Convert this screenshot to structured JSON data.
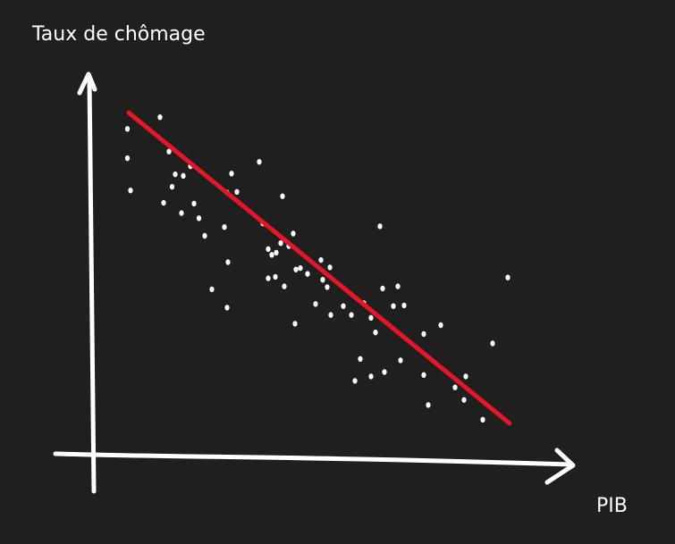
{
  "chart_data": {
    "type": "scatter",
    "title": "",
    "xlabel": "PIB",
    "ylabel": "Taux de chômage",
    "xlim": [
      0,
      100
    ],
    "ylim": [
      0,
      100
    ],
    "grid": false,
    "hand_drawn": true,
    "points": [
      {
        "x": 7.5,
        "y": 89.2
      },
      {
        "x": 7.5,
        "y": 81.2
      },
      {
        "x": 8.2,
        "y": 72.4
      },
      {
        "x": 14.8,
        "y": 92.4
      },
      {
        "x": 16.8,
        "y": 83.0
      },
      {
        "x": 18.2,
        "y": 76.8
      },
      {
        "x": 15.6,
        "y": 69.0
      },
      {
        "x": 19.6,
        "y": 66.2
      },
      {
        "x": 23.5,
        "y": 64.8
      },
      {
        "x": 17.5,
        "y": 73.4
      },
      {
        "x": 20.0,
        "y": 76.4
      },
      {
        "x": 21.6,
        "y": 79.0
      },
      {
        "x": 22.4,
        "y": 68.8
      },
      {
        "x": 24.8,
        "y": 60.0
      },
      {
        "x": 29.8,
        "y": 71.8
      },
      {
        "x": 30.8,
        "y": 77.0
      },
      {
        "x": 32.0,
        "y": 72.0
      },
      {
        "x": 37.0,
        "y": 80.2
      },
      {
        "x": 42.2,
        "y": 70.8
      },
      {
        "x": 29.2,
        "y": 62.4
      },
      {
        "x": 30.0,
        "y": 52.8
      },
      {
        "x": 37.8,
        "y": 63.4
      },
      {
        "x": 39.0,
        "y": 56.4
      },
      {
        "x": 39.8,
        "y": 54.8
      },
      {
        "x": 40.8,
        "y": 55.4
      },
      {
        "x": 41.8,
        "y": 58.0
      },
      {
        "x": 43.6,
        "y": 57.2
      },
      {
        "x": 44.6,
        "y": 60.6
      },
      {
        "x": 46.2,
        "y": 51.2
      },
      {
        "x": 39.0,
        "y": 48.4
      },
      {
        "x": 40.6,
        "y": 48.8
      },
      {
        "x": 42.6,
        "y": 46.2
      },
      {
        "x": 45.2,
        "y": 50.8
      },
      {
        "x": 47.8,
        "y": 49.6
      },
      {
        "x": 51.2,
        "y": 48.0
      },
      {
        "x": 52.2,
        "y": 46.0
      },
      {
        "x": 52.8,
        "y": 51.4
      },
      {
        "x": 50.8,
        "y": 53.4
      },
      {
        "x": 26.4,
        "y": 45.4
      },
      {
        "x": 29.8,
        "y": 40.4
      },
      {
        "x": 45.0,
        "y": 36.0
      },
      {
        "x": 49.6,
        "y": 41.4
      },
      {
        "x": 53.0,
        "y": 38.4
      },
      {
        "x": 55.8,
        "y": 40.8
      },
      {
        "x": 57.6,
        "y": 38.4
      },
      {
        "x": 60.4,
        "y": 41.6
      },
      {
        "x": 62.0,
        "y": 37.6
      },
      {
        "x": 63.0,
        "y": 33.6
      },
      {
        "x": 64.6,
        "y": 45.6
      },
      {
        "x": 67.0,
        "y": 40.8
      },
      {
        "x": 64.0,
        "y": 62.6
      },
      {
        "x": 68.0,
        "y": 46.2
      },
      {
        "x": 69.4,
        "y": 41.0
      },
      {
        "x": 73.8,
        "y": 33.2
      },
      {
        "x": 77.6,
        "y": 35.6
      },
      {
        "x": 59.6,
        "y": 26.4
      },
      {
        "x": 58.4,
        "y": 20.4
      },
      {
        "x": 62.0,
        "y": 21.6
      },
      {
        "x": 65.0,
        "y": 22.8
      },
      {
        "x": 68.6,
        "y": 26.0
      },
      {
        "x": 73.8,
        "y": 22.0
      },
      {
        "x": 74.8,
        "y": 13.8
      },
      {
        "x": 80.8,
        "y": 18.6
      },
      {
        "x": 83.2,
        "y": 21.6
      },
      {
        "x": 82.8,
        "y": 15.2
      },
      {
        "x": 87.0,
        "y": 9.8
      },
      {
        "x": 89.2,
        "y": 30.6
      },
      {
        "x": 92.6,
        "y": 48.6
      }
    ],
    "trendline": {
      "x": [
        7.8,
        93.0
      ],
      "y": [
        93.6,
        8.8
      ]
    },
    "colors": {
      "background": "#1f1f1f",
      "axes": "#ffffff",
      "points": "#ffffff",
      "trendline": "#e3162a"
    }
  }
}
